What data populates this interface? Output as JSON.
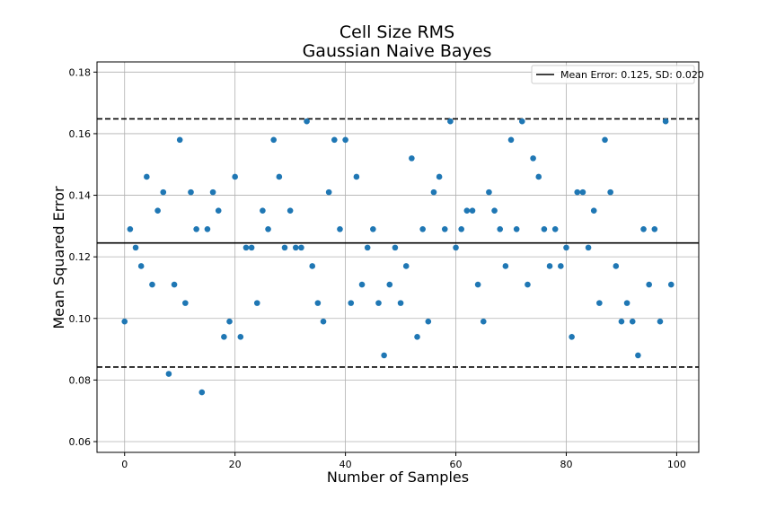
{
  "chart_data": {
    "type": "scatter",
    "title": [
      "Cell Size RMS",
      "Gaussian Naive Bayes"
    ],
    "xlabel": "Number of Samples",
    "ylabel": "Mean Squared Error",
    "xlim": [
      -5,
      104
    ],
    "ylim": [
      0.0565,
      0.1833
    ],
    "xticks": [
      0,
      20,
      40,
      60,
      80,
      100
    ],
    "yticks": [
      0.06,
      0.08,
      0.1,
      0.12,
      0.14,
      0.16,
      0.18
    ],
    "ytick_labels": [
      "0.06",
      "0.08",
      "0.10",
      "0.12",
      "0.14",
      "0.16",
      "0.18"
    ],
    "grid": true,
    "legend": {
      "placement": "top-right",
      "entries": [
        "Mean Error: 0.125, SD: 0.020"
      ]
    },
    "colors": {
      "points": "#1f77b4",
      "lines": "#000000",
      "grid": "#b0b0b0"
    },
    "mean": 0.1245,
    "upper": 0.1648,
    "lower": 0.0842,
    "x": [
      0,
      1,
      2,
      3,
      4,
      5,
      6,
      7,
      8,
      9,
      10,
      11,
      12,
      13,
      14,
      15,
      16,
      17,
      18,
      19,
      20,
      21,
      22,
      23,
      24,
      25,
      26,
      27,
      28,
      29,
      30,
      31,
      32,
      33,
      34,
      35,
      36,
      37,
      38,
      39,
      40,
      41,
      42,
      43,
      44,
      45,
      46,
      47,
      48,
      49,
      50,
      51,
      52,
      53,
      54,
      55,
      56,
      57,
      58,
      59,
      60,
      61,
      62,
      63,
      64,
      65,
      66,
      67,
      68,
      69,
      70,
      71,
      72,
      73,
      74,
      75,
      76,
      77,
      78,
      79,
      80,
      81,
      82,
      83,
      84,
      85,
      86,
      87,
      88,
      89,
      90,
      91,
      92,
      93,
      94,
      95,
      96,
      97,
      98,
      99
    ],
    "y": [
      0.099,
      0.129,
      0.123,
      0.117,
      0.146,
      0.111,
      0.135,
      0.141,
      0.082,
      0.111,
      0.158,
      0.105,
      0.141,
      0.129,
      0.076,
      0.129,
      0.141,
      0.135,
      0.094,
      0.099,
      0.146,
      0.094,
      0.123,
      0.123,
      0.105,
      0.135,
      0.129,
      0.158,
      0.146,
      0.123,
      0.135,
      0.123,
      0.123,
      0.164,
      0.117,
      0.105,
      0.099,
      0.141,
      0.158,
      0.129,
      0.158,
      0.105,
      0.146,
      0.111,
      0.123,
      0.129,
      0.105,
      0.088,
      0.111,
      0.123,
      0.105,
      0.117,
      0.152,
      0.094,
      0.129,
      0.099,
      0.141,
      0.146,
      0.129,
      0.164,
      0.123,
      0.129,
      0.135,
      0.135,
      0.111,
      0.099,
      0.141,
      0.135,
      0.129,
      0.117,
      0.158,
      0.129,
      0.164,
      0.111,
      0.152,
      0.146,
      0.129,
      0.117,
      0.129,
      0.117,
      0.123,
      0.094,
      0.141,
      0.141,
      0.123,
      0.135,
      0.105,
      0.158,
      0.141,
      0.117,
      0.099,
      0.105,
      0.099,
      0.088,
      0.129,
      0.111,
      0.129,
      0.099,
      0.164,
      0.111
    ]
  }
}
